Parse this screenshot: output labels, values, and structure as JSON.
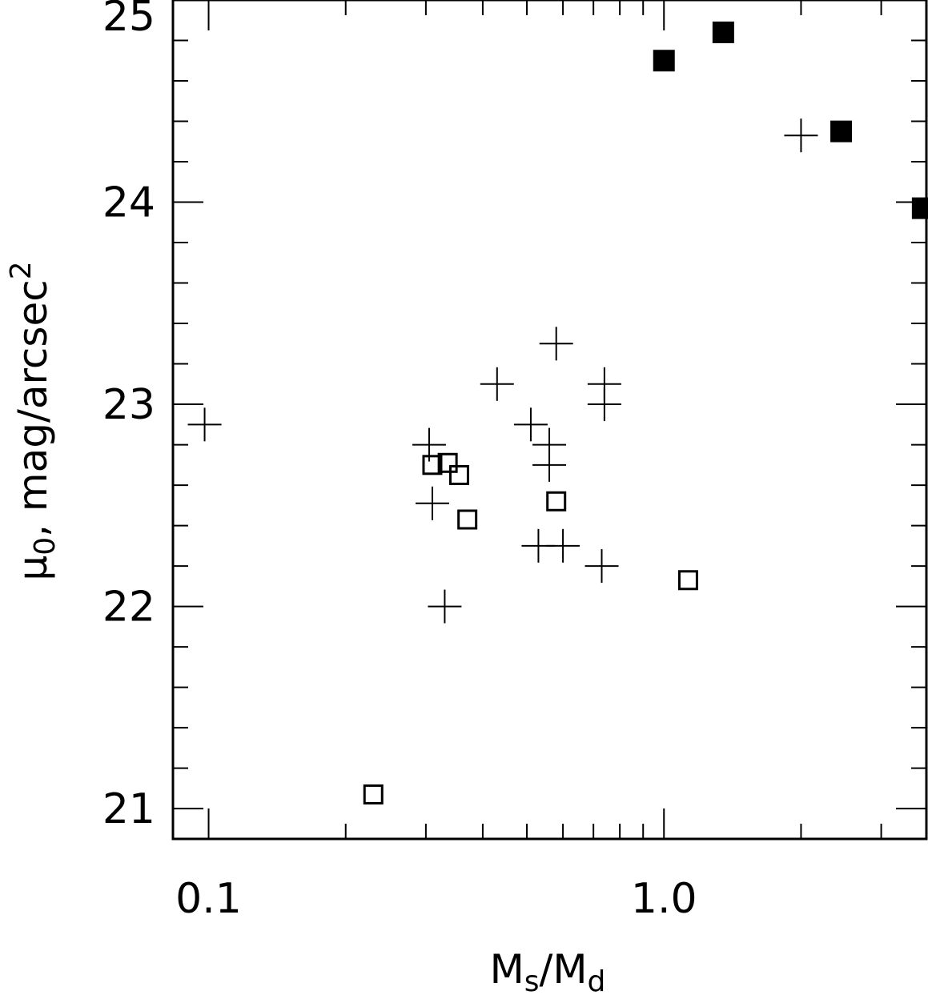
{
  "chart_data": {
    "type": "scatter",
    "x_scale": "log",
    "xlim": [
      0.0835,
      3.77
    ],
    "ylim": [
      20.85,
      25.0
    ],
    "xlabel": {
      "base": "M",
      "sub1": "s",
      "slash": "/",
      "base2": "M",
      "sub2": "d"
    },
    "ylabel": {
      "mu": "μ",
      "sub": "0",
      "rest": ", mag/arcsec",
      "sup": "2"
    },
    "x_ticks": [
      {
        "value": 0.1,
        "label": "0.1"
      },
      {
        "value": 1.0,
        "label": "1.0"
      }
    ],
    "x_minor_ticks": [
      0.2,
      0.3,
      0.4,
      0.5,
      0.6,
      0.7,
      0.8,
      0.9,
      2,
      3
    ],
    "y_ticks": [
      {
        "value": 21,
        "label": "21"
      },
      {
        "value": 22,
        "label": "22"
      },
      {
        "value": 23,
        "label": "23"
      },
      {
        "value": 24,
        "label": "24"
      },
      {
        "value": 25,
        "label": "25"
      }
    ],
    "y_minor_step": 0.2,
    "grid": false,
    "legend": "none",
    "series": [
      {
        "marker": "plus",
        "color": "#000000",
        "points": [
          {
            "x": 0.098,
            "y": 22.9
          },
          {
            "x": 0.305,
            "y": 22.8
          },
          {
            "x": 0.31,
            "y": 22.51
          },
          {
            "x": 0.33,
            "y": 22.0
          },
          {
            "x": 0.43,
            "y": 23.1
          },
          {
            "x": 0.51,
            "y": 22.9
          },
          {
            "x": 0.53,
            "y": 22.3
          },
          {
            "x": 0.56,
            "y": 22.8
          },
          {
            "x": 0.56,
            "y": 22.7
          },
          {
            "x": 0.58,
            "y": 23.3
          },
          {
            "x": 0.6,
            "y": 22.3
          },
          {
            "x": 0.74,
            "y": 23.1
          },
          {
            "x": 0.74,
            "y": 23.0
          },
          {
            "x": 0.73,
            "y": 22.2
          },
          {
            "x": 2.0,
            "y": 24.33
          }
        ]
      },
      {
        "marker": "open-square",
        "color": "#000000",
        "points": [
          {
            "x": 0.23,
            "y": 21.07
          },
          {
            "x": 0.31,
            "y": 22.7
          },
          {
            "x": 0.335,
            "y": 22.71
          },
          {
            "x": 0.355,
            "y": 22.65
          },
          {
            "x": 0.37,
            "y": 22.43
          },
          {
            "x": 0.58,
            "y": 22.52
          },
          {
            "x": 1.13,
            "y": 22.13
          }
        ]
      },
      {
        "marker": "filled-square",
        "color": "#000000",
        "points": [
          {
            "x": 1.0,
            "y": 24.7
          },
          {
            "x": 1.35,
            "y": 24.84
          },
          {
            "x": 2.45,
            "y": 24.35
          },
          {
            "x": 3.7,
            "y": 23.97
          }
        ]
      }
    ]
  }
}
